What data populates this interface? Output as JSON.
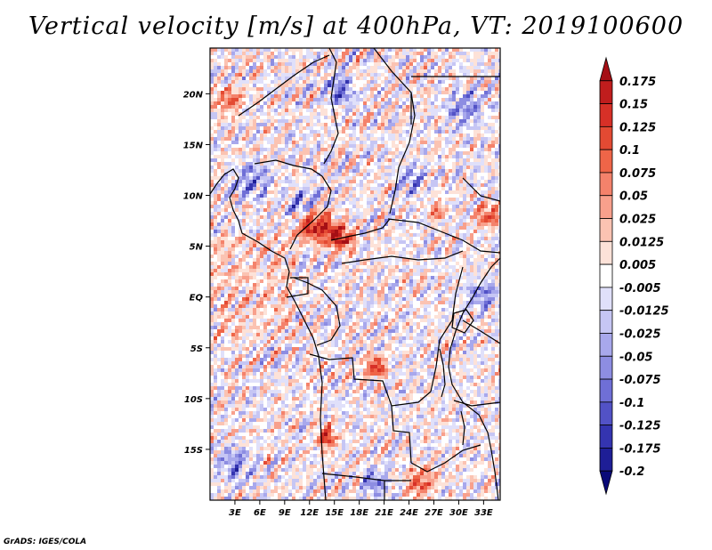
{
  "title": "Vertical velocity [m/s] at 400hPa, VT: 2019100600",
  "credit": "GrADS: IGES/COLA",
  "chart_data": {
    "type": "heatmap",
    "title": "Vertical velocity [m/s] at 400hPa, VT: 2019100600",
    "variable": "Vertical velocity",
    "units": "m/s",
    "level": "400hPa",
    "valid_time": "2019100600",
    "xlim": [
      0,
      35
    ],
    "ylim": [
      -20,
      24.5
    ],
    "x_ticks": [
      {
        "value": 3,
        "label": "3E"
      },
      {
        "value": 6,
        "label": "6E"
      },
      {
        "value": 9,
        "label": "9E"
      },
      {
        "value": 12,
        "label": "12E"
      },
      {
        "value": 15,
        "label": "15E"
      },
      {
        "value": 18,
        "label": "18E"
      },
      {
        "value": 21,
        "label": "21E"
      },
      {
        "value": 24,
        "label": "24E"
      },
      {
        "value": 27,
        "label": "27E"
      },
      {
        "value": 30,
        "label": "30E"
      },
      {
        "value": 33,
        "label": "33E"
      }
    ],
    "y_ticks": [
      {
        "value": 20,
        "label": "20N"
      },
      {
        "value": 15,
        "label": "15N"
      },
      {
        "value": 10,
        "label": "10N"
      },
      {
        "value": 5,
        "label": "5N"
      },
      {
        "value": 0,
        "label": "EQ"
      },
      {
        "value": -5,
        "label": "5S"
      },
      {
        "value": -10,
        "label": "10S"
      },
      {
        "value": -15,
        "label": "15S"
      }
    ],
    "colorbar": {
      "labels": [
        "0.175",
        "0.15",
        "0.125",
        "0.1",
        "0.075",
        "0.05",
        "0.025",
        "0.0125",
        "0.005",
        "-0.005",
        "-0.0125",
        "-0.025",
        "-0.05",
        "-0.075",
        "-0.1",
        "-0.125",
        "-0.175",
        "-0.2"
      ],
      "colors": [
        "#a50f15",
        "#c01d1d",
        "#d73027",
        "#e34a33",
        "#ef6548",
        "#f4826b",
        "#f8a08c",
        "#fbc3b2",
        "#fde2d8",
        "#ffffff",
        "#e0e0fa",
        "#c6c6f4",
        "#a8a8ec",
        "#8d8de2",
        "#6f6fd6",
        "#5252c6",
        "#3434b0",
        "#1e1e96",
        "#0a0a78"
      ],
      "extend": "both"
    }
  }
}
